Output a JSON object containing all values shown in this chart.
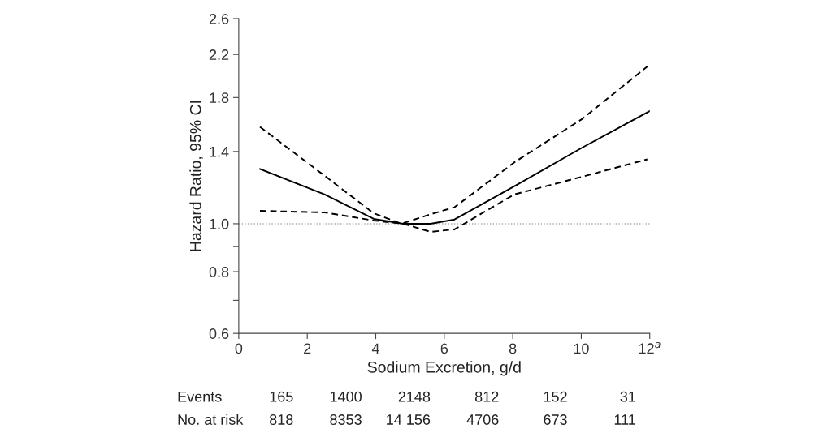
{
  "chart_data": {
    "type": "line",
    "xlabel": "Sodium Excretion, g/d",
    "ylabel": "Hazard Ratio, 95% CI",
    "log": "y",
    "xlim": [
      0,
      12
    ],
    "xticks": [
      0,
      2,
      4,
      6,
      8,
      10,
      {
        "value": 12,
        "label": "12$^{a}$"
      }
    ],
    "ylim": [
      0.6,
      2.6
    ],
    "yticks": [
      0.6,
      {
        "value": 0.7,
        "label": null
      },
      0.8,
      {
        "value": 0.9,
        "label": null
      },
      {
        "value": 1.0,
        "label": "1.0"
      },
      1.4,
      1.8,
      2.2,
      2.6
    ],
    "grid": false,
    "legend": false,
    "marker": "none",
    "series": [
      {
        "color": "#000000",
        "line_style": "solid",
        "x": [
          0.62,
          2.51,
          3.94,
          4.8,
          5.6,
          6.3,
          8.04,
          10.03,
          12.0
        ],
        "values": [
          1.29,
          1.146,
          1.023,
          1.0,
          1.0,
          1.02,
          1.19,
          1.426,
          1.69
        ]
      },
      {
        "color": "#000000",
        "line_style": "dashed",
        "x": [
          0.62,
          2.51,
          3.94,
          4.75,
          5.6,
          6.3,
          8.04,
          10.03,
          11.93
        ],
        "values": [
          1.57,
          1.25,
          1.05,
          1.0,
          1.045,
          1.08,
          1.33,
          1.63,
          2.08
        ]
      },
      {
        "color": "#000000",
        "line_style": "dashed",
        "x": [
          0.62,
          2.51,
          3.94,
          4.8,
          5.6,
          6.3,
          8.04,
          10.03,
          11.93
        ],
        "values": [
          1.062,
          1.054,
          1.015,
          1.0,
          0.963,
          0.974,
          1.146,
          1.245,
          1.35
        ]
      }
    ],
    "ref_lines": [
      {
        "axis": "y",
        "value": 1.0,
        "color": "#aaaaaa",
        "line_style": "dotted"
      }
    ],
    "annotations": [
      "Events",
      "165",
      "1400",
      "2148",
      "812",
      "152",
      "31",
      "No. at risk",
      "818",
      "8353",
      "14 156",
      "4706",
      "673",
      "111"
    ]
  }
}
